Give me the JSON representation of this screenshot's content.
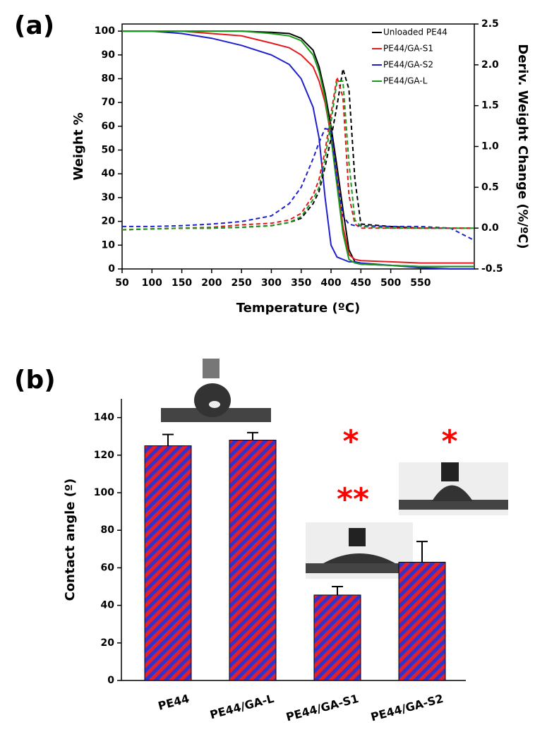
{
  "chart_data": [
    {
      "type": "line",
      "label": "(a)",
      "x_label": "Temperature (ºC)",
      "y_label": "Weight %",
      "y2_label": "Deriv. Weight Change (%/ºC)",
      "legend": "upper right",
      "x": [
        50,
        100,
        150,
        200,
        250,
        300,
        330,
        350,
        370,
        380,
        390,
        400,
        410,
        420,
        430,
        440,
        450,
        500,
        550,
        600,
        640
      ],
      "xlim": [
        50,
        640
      ],
      "xticks": [
        50,
        100,
        150,
        200,
        250,
        300,
        350,
        400,
        450,
        500,
        550
      ],
      "ylim": [
        0,
        103
      ],
      "yticks": [
        0,
        10,
        20,
        30,
        40,
        50,
        60,
        70,
        80,
        90,
        100
      ],
      "y2lim": [
        -0.5,
        2.5
      ],
      "y2ticks": [
        -0.5,
        {
          "value": 0,
          "label": "0.0"
        },
        0.5,
        {
          "value": 1,
          "label": "1.0"
        },
        1.5,
        {
          "value": 2,
          "label": "2.0"
        },
        2.5
      ],
      "series": [
        {
          "name": "Unloaded PE44",
          "color": "#000000",
          "style": "solid",
          "values": [
            100,
            100,
            100,
            100,
            100,
            99.5,
            99,
            97,
            92,
            85,
            74,
            60,
            43,
            25,
            8,
            3,
            2,
            1.5,
            1,
            1,
            1
          ]
        },
        {
          "name": "PE44/GA-S1",
          "color": "#e31a1c",
          "style": "solid",
          "values": [
            100,
            100,
            100,
            99,
            98,
            95,
            93,
            90,
            85,
            79,
            70,
            56,
            38,
            18,
            6,
            4,
            3.5,
            3,
            2.5,
            2.5,
            2.5
          ]
        },
        {
          "name": "PE44/GA-S2",
          "color": "#1f1fd0",
          "style": "solid",
          "values": [
            100,
            100,
            99,
            97,
            94,
            90,
            86,
            80,
            68,
            55,
            30,
            10,
            5,
            4,
            3,
            3,
            2.5,
            1.5,
            0.5,
            0,
            0
          ]
        },
        {
          "name": "PE44/GA-L",
          "color": "#1a9a1a",
          "style": "solid",
          "values": [
            100,
            100,
            100,
            100,
            100,
            99,
            98,
            96,
            90,
            83,
            72,
            55,
            35,
            15,
            4,
            2.5,
            2,
            1.5,
            1,
            1,
            1
          ]
        },
        {
          "color": "#000000",
          "style": "dashed",
          "axis": "y2",
          "values": [
            -0.02,
            -0.01,
            0,
            0,
            0.01,
            0.03,
            0.07,
            0.12,
            0.3,
            0.45,
            0.75,
            1.1,
            1.5,
            1.95,
            1.7,
            0.6,
            0.05,
            0.02,
            0,
            0,
            0
          ]
        },
        {
          "color": "#e31a1c",
          "style": "dashed",
          "axis": "y2",
          "values": [
            -0.02,
            -0.01,
            0,
            0.01,
            0.04,
            0.06,
            0.1,
            0.18,
            0.4,
            0.6,
            0.95,
            1.4,
            1.85,
            1.6,
            0.4,
            0.05,
            0,
            0,
            0,
            0,
            0
          ]
        },
        {
          "color": "#1f1fd0",
          "style": "dashed",
          "axis": "y2",
          "values": [
            0.02,
            0.02,
            0.03,
            0.05,
            0.08,
            0.15,
            0.3,
            0.5,
            0.85,
            1.05,
            1.22,
            1.2,
            0.6,
            0.15,
            0.05,
            0.03,
            0.03,
            0.02,
            0.02,
            0,
            -0.15
          ]
        },
        {
          "color": "#1a9a1a",
          "style": "dashed",
          "axis": "y2",
          "values": [
            -0.02,
            -0.01,
            0,
            0,
            0.01,
            0.03,
            0.07,
            0.14,
            0.35,
            0.5,
            0.85,
            1.3,
            1.8,
            1.8,
            0.8,
            0.1,
            0.02,
            0,
            0,
            0,
            0
          ]
        }
      ]
    },
    {
      "type": "bar",
      "label": "(b)",
      "y_label": "Contact angle (º)",
      "categories": [
        "PE44",
        "PE44/GA-L",
        "PE44/GA-S1",
        "PE44/GA-S2"
      ],
      "values": [
        125,
        128,
        45.5,
        63
      ],
      "errors": [
        6,
        4,
        4.5,
        11
      ],
      "color": "#3333cc",
      "hatch_color": "#e3202a",
      "ylim": [
        0,
        150
      ],
      "yticks": [
        0,
        20,
        40,
        60,
        80,
        100,
        120,
        140
      ],
      "annotations": [
        "*",
        "**",
        "*"
      ],
      "annotation_color": "#ff0000"
    }
  ]
}
